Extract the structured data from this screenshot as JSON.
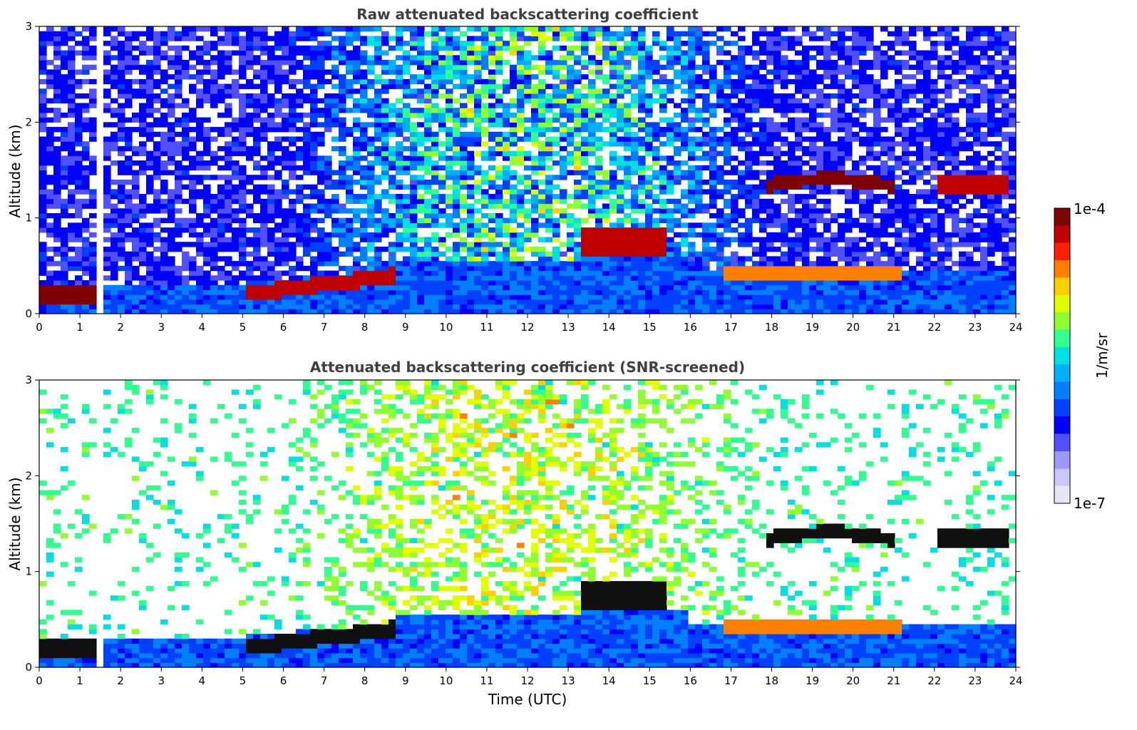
{
  "chart_data": [
    {
      "type": "heatmap",
      "title": "Raw attenuated backscattering coefficient",
      "xlabel": "Time (UTC)",
      "ylabel": "Altitude (km)",
      "xlim": [
        0,
        24
      ],
      "ylim": [
        0,
        3
      ],
      "xticks": [
        "0",
        "1",
        "2",
        "3",
        "4",
        "5",
        "6",
        "7",
        "8",
        "9",
        "10",
        "11",
        "12",
        "13",
        "14",
        "15",
        "16",
        "17",
        "18",
        "19",
        "20",
        "21",
        "22",
        "23",
        "24"
      ],
      "yticks": [
        "0",
        "1",
        "2",
        "3"
      ],
      "show_xlabel": false,
      "screened": false,
      "features": [
        {
          "name": "boundary layer aerosol",
          "t_start": 0,
          "t_end": 24,
          "top_km": [
            0.3,
            0.3,
            0.35,
            0.45,
            0.5
          ]
        },
        {
          "name": "morning aerosol layer",
          "t_start": 0,
          "t_end": 1.5,
          "alt_km": [
            0.15,
            0.3
          ]
        },
        {
          "name": "morning aerosol layer",
          "t_start": 5.0,
          "t_end": 8.7,
          "alt_km": [
            0.2,
            0.45
          ]
        },
        {
          "name": "midday cloud",
          "t_start": 13.3,
          "t_end": 15.4,
          "alt_km": [
            0.6,
            0.95
          ]
        },
        {
          "name": "evening cloud",
          "t_start": 17.8,
          "t_end": 21.0,
          "alt_km": [
            1.3,
            1.45
          ]
        },
        {
          "name": "evening cloud",
          "t_start": 22.0,
          "t_end": 23.8,
          "alt_km": [
            1.2,
            1.45
          ]
        },
        {
          "name": "low evening layer",
          "t_start": 16.8,
          "t_end": 21.2,
          "alt_km": [
            0.35,
            0.5
          ]
        }
      ],
      "data_gaps_hours": [
        1.45,
        1.55
      ]
    },
    {
      "type": "heatmap",
      "title": "Attenuated backscattering coefficient (SNR-screened)",
      "xlabel": "Time (UTC)",
      "ylabel": "Altitude (km)",
      "xlim": [
        0,
        24
      ],
      "ylim": [
        0,
        3
      ],
      "xticks": [
        "0",
        "1",
        "2",
        "3",
        "4",
        "5",
        "6",
        "7",
        "8",
        "9",
        "10",
        "11",
        "12",
        "13",
        "14",
        "15",
        "16",
        "17",
        "18",
        "19",
        "20",
        "21",
        "22",
        "23",
        "24"
      ],
      "yticks": [
        "0",
        "1",
        "2",
        "3"
      ],
      "show_xlabel": true,
      "screened": true
    }
  ],
  "colorbar": {
    "label": "1/m/sr",
    "max_label": "1e-4",
    "min_label": "1e-7",
    "scale": "log",
    "range": [
      1e-07,
      0.0001
    ],
    "colors": [
      "#e6e6f8",
      "#c8c8ff",
      "#9999ff",
      "#5050ff",
      "#0000ff",
      "#0040ff",
      "#0080ff",
      "#00b0ff",
      "#00e0e0",
      "#30ff90",
      "#90ff30",
      "#e0ff00",
      "#ffd000",
      "#ff8000",
      "#ff2000",
      "#c00000",
      "#7f0000"
    ]
  }
}
